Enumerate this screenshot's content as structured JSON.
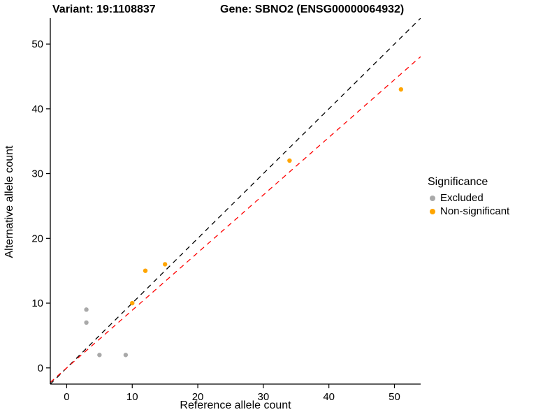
{
  "titles": {
    "left": "Variant: 19:1108837",
    "right": "Gene: SBNO2 (ENSG00000064932)"
  },
  "legend": {
    "title": "Significance",
    "entries": [
      {
        "label": "Excluded",
        "color": "#A9A9A9"
      },
      {
        "label": "Non-significant",
        "color": "#FFA500"
      }
    ]
  },
  "chart_data": {
    "type": "scatter",
    "title": "Variant: 19:1108837 / Gene: SBNO2 (ENSG00000064932)",
    "xlabel": "Reference allele count",
    "ylabel": "Alternative allele count",
    "xlim": [
      -2.5,
      54
    ],
    "ylim": [
      -2.5,
      54
    ],
    "xticks": [
      0,
      10,
      20,
      30,
      40,
      50
    ],
    "yticks": [
      0,
      10,
      20,
      30,
      40,
      50
    ],
    "grid": false,
    "legend_position": "right",
    "series": [
      {
        "name": "Excluded",
        "color": "#A9A9A9",
        "points": [
          [
            3,
            9
          ],
          [
            3,
            7
          ],
          [
            5,
            2
          ],
          [
            9,
            2
          ]
        ]
      },
      {
        "name": "Non-significant",
        "color": "#FFA500",
        "points": [
          [
            10,
            10
          ],
          [
            12,
            15
          ],
          [
            15,
            16
          ],
          [
            34,
            32
          ],
          [
            51,
            43
          ]
        ]
      }
    ],
    "lines": [
      {
        "name": "identity-line",
        "color": "#000000",
        "style": "dashed",
        "slope": 1.0,
        "intercept": 0
      },
      {
        "name": "fit-line",
        "color": "#FF0000",
        "style": "dashed",
        "slope": 0.89,
        "intercept": 0
      }
    ]
  }
}
